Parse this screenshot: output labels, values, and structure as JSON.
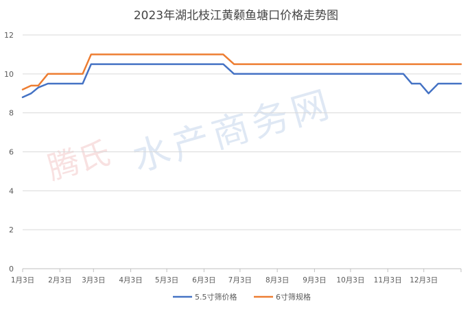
{
  "chart_data": {
    "type": "line",
    "title": "2023年湖北枝江黄颡鱼塘口价格走势图",
    "xlabel": "",
    "ylabel": "",
    "ylim": [
      0,
      12
    ],
    "yticks": [
      0,
      2,
      4,
      6,
      8,
      10,
      12
    ],
    "grid": true,
    "legend_position": "bottom",
    "watermark": "腾氏 水产商务网",
    "x_tick_labels": [
      "1月3日",
      "2月3日",
      "3月3日",
      "4月3日",
      "5月3日",
      "6月3日",
      "7月3日",
      "8月3日",
      "9月3日",
      "10月3日",
      "11月3日",
      "12月3日"
    ],
    "x_tick_days": [
      3,
      34,
      62,
      93,
      123,
      154,
      184,
      215,
      246,
      276,
      307,
      337
    ],
    "x_range_days": [
      3,
      368
    ],
    "series": [
      {
        "name": "5.5寸筛价格",
        "color": "#4472C4",
        "x": [
          3,
          10,
          16,
          24,
          34,
          45,
          53,
          60,
          170,
          179,
          190,
          320,
          327,
          334,
          341,
          349,
          357,
          368
        ],
        "values": [
          8.8,
          9.0,
          9.3,
          9.5,
          9.5,
          9.5,
          9.5,
          10.5,
          10.5,
          10.0,
          10.0,
          10.0,
          9.5,
          9.5,
          9.0,
          9.5,
          9.5,
          9.5
        ]
      },
      {
        "name": "6寸筛规格",
        "color": "#ED7D31",
        "x": [
          3,
          10,
          16,
          24,
          34,
          45,
          53,
          60,
          170,
          179,
          190,
          368
        ],
        "values": [
          9.2,
          9.4,
          9.4,
          10.0,
          10.0,
          10.0,
          10.0,
          11.0,
          11.0,
          10.5,
          10.5,
          10.5
        ]
      }
    ]
  }
}
